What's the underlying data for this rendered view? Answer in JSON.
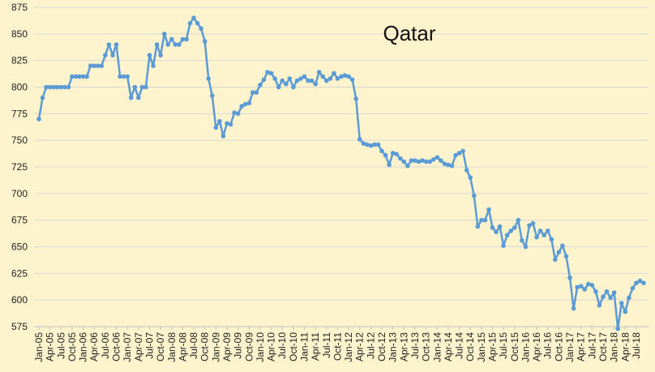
{
  "chart_data": {
    "type": "line",
    "title": "Qatar",
    "xlabel": "",
    "ylabel": "",
    "ylim": [
      575,
      875
    ],
    "yticks": [
      575,
      600,
      625,
      650,
      675,
      700,
      725,
      750,
      775,
      800,
      825,
      850,
      875
    ],
    "grid": true,
    "legend": "none",
    "line_color": "#5B9BD5",
    "grid_color": "#D9D9D9",
    "background": "#FDF3CC",
    "x_tick_labels": [
      "Jan-05",
      "Apr-05",
      "Jul-05",
      "Oct-05",
      "Jan-06",
      "Apr-06",
      "Jul-06",
      "Oct-06",
      "Jan-07",
      "Apr-07",
      "Jul-07",
      "Oct-07",
      "Jan-08",
      "Apr-08",
      "Jul-08",
      "Oct-08",
      "Jan-09",
      "Apr-09",
      "Jul-09",
      "Oct-09",
      "Jan-10",
      "Apr-10",
      "Jul-10",
      "Oct-10",
      "Jan-11",
      "Apr-11",
      "Jul-11",
      "Oct-11",
      "Jan-12",
      "Apr-12",
      "Jul-12",
      "Oct-12",
      "Jan-13",
      "Apr-13",
      "Jul-13",
      "Oct-13",
      "Jan-14",
      "Apr-14",
      "Jul-14",
      "Oct-14",
      "Jan-15",
      "Apr-15",
      "Jul-15",
      "Oct-15",
      "Jan-16",
      "Apr-16",
      "Jul-16",
      "Oct-16",
      "Jan-17",
      "Apr-17",
      "Jul-17",
      "Oct-17",
      "Jan-18",
      "Apr-18",
      "Jul-18"
    ],
    "x_start": "Jan-05",
    "x_interval": "monthly",
    "values": [
      770,
      790,
      800,
      800,
      800,
      800,
      800,
      800,
      800,
      810,
      810,
      810,
      810,
      810,
      820,
      820,
      820,
      820,
      830,
      840,
      830,
      840,
      810,
      810,
      810,
      790,
      800,
      790,
      800,
      800,
      830,
      820,
      840,
      830,
      850,
      840,
      845,
      840,
      840,
      845,
      845,
      860,
      865,
      860,
      855,
      843,
      808,
      792,
      762,
      768,
      754,
      766,
      765,
      776,
      775,
      782,
      784,
      785,
      795,
      795,
      802,
      807,
      814,
      813,
      808,
      800,
      806,
      803,
      808,
      800,
      806,
      808,
      810,
      806,
      806,
      803,
      814,
      810,
      806,
      808,
      813,
      808,
      810,
      811,
      810,
      807,
      789,
      751,
      747,
      746,
      745,
      746,
      746,
      740,
      736,
      727,
      738,
      737,
      733,
      730,
      726,
      731,
      731,
      730,
      731,
      730,
      730,
      732,
      734,
      731,
      728,
      727,
      726,
      736,
      738,
      740,
      722,
      715,
      698,
      669,
      675,
      675,
      685,
      668,
      664,
      669,
      651,
      661,
      665,
      668,
      675,
      656,
      650,
      670,
      672,
      659,
      665,
      661,
      665,
      657,
      638,
      645,
      651,
      641,
      621,
      592,
      612,
      613,
      610,
      615,
      614,
      608,
      595,
      603,
      608,
      602,
      607,
      573,
      597,
      589,
      602,
      611,
      616,
      618,
      616
    ]
  }
}
